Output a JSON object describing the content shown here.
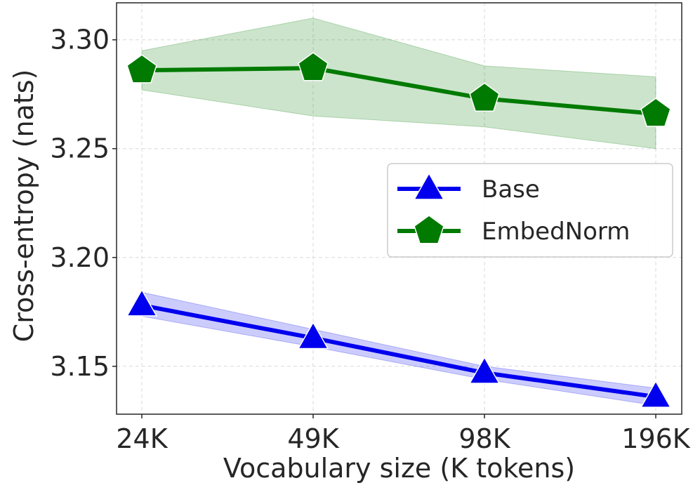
{
  "chart_data": {
    "type": "line",
    "categories": [
      "24K",
      "49K",
      "98K",
      "196K"
    ],
    "xlabel": "Vocabulary size (K tokens)",
    "ylabel": "Cross-entropy (nats)",
    "ylim": [
      3.128,
      3.317
    ],
    "yticks": [
      3.15,
      3.2,
      3.25,
      3.3
    ],
    "ytick_labels": [
      "3.15",
      "3.20",
      "3.25",
      "3.30"
    ],
    "grid": true,
    "legend_position": "center-right",
    "series": [
      {
        "name": "Base",
        "color": "#0000ee",
        "marker": "triangle",
        "values": [
          3.178,
          3.163,
          3.147,
          3.136
        ],
        "lower": [
          3.173,
          3.159,
          3.144,
          3.132
        ],
        "upper": [
          3.184,
          3.167,
          3.15,
          3.14
        ]
      },
      {
        "name": "EmbedNorm",
        "color": "#007a00",
        "marker": "pentagon",
        "values": [
          3.286,
          3.287,
          3.273,
          3.266
        ],
        "lower": [
          3.277,
          3.265,
          3.26,
          3.25
        ],
        "upper": [
          3.295,
          3.31,
          3.288,
          3.283
        ]
      }
    ]
  }
}
